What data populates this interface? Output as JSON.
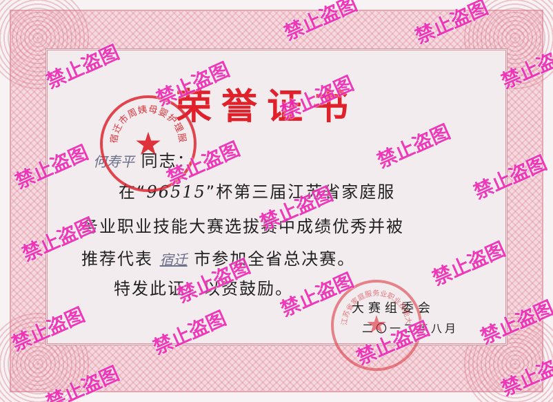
{
  "certificate": {
    "title": "荣誉证书",
    "recipient_handwritten": "何寿平",
    "recipient_suffix": "同志：",
    "line1_prefix": "在“",
    "line1_code": "96515",
    "line1_suffix": "”杯第三届江苏省家庭服",
    "line2": "务业职业技能大赛选拔赛中成绩优秀并被",
    "line3_prefix": "推荐代表",
    "line3_handwritten": "宿迁",
    "line3_suffix": "市参加全省总决赛。",
    "line4": "特发此证，以资鼓励。",
    "issuer": "大赛组委会",
    "date": "二〇一二年八月"
  },
  "seals": {
    "left_text": "宿迁市周姨母婴护理服务站",
    "right_text": "江苏省家庭服务业职业技能大赛服务业"
  },
  "watermark": {
    "text": "禁止盗图",
    "color": "#ee2bb4"
  }
}
